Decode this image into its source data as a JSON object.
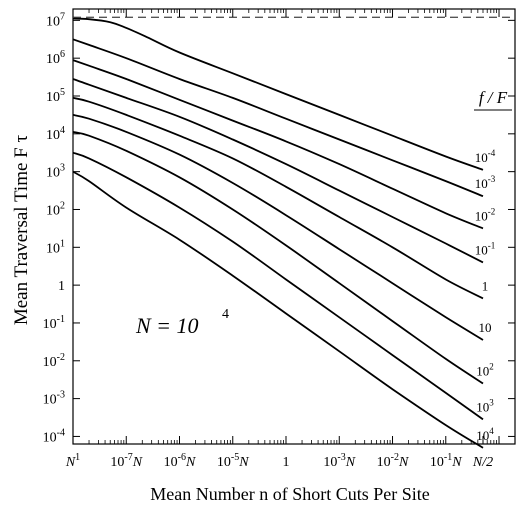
{
  "chart_data": {
    "type": "line",
    "xlabel": "Mean Number n of Short Cuts Per Site",
    "ylabel": "Mean Traversal Time   F τ",
    "annotation": {
      "base": "N = 10",
      "exponent": "4"
    },
    "legend_title": "f / F",
    "x_scale": "log10 (in units of N, N = 10^4)",
    "y_scale": "log10",
    "xlim_log10": [
      -8,
      0.3
    ],
    "ylim_log10": [
      -4.2,
      7.3
    ],
    "x_ticks": [
      {
        "label": "N",
        "sup": "1",
        "x_log10": -8
      },
      {
        "label": "10",
        "sup": "-7",
        "suffix": "N",
        "x_log10": -7
      },
      {
        "label": "10",
        "sup": "-6",
        "suffix": "N",
        "x_log10": -6
      },
      {
        "label": "10",
        "sup": "-5",
        "suffix": "N",
        "x_log10": -5
      },
      {
        "label": "1",
        "sup": "",
        "suffix": "",
        "x_log10": -4
      },
      {
        "label": "10",
        "sup": "-3",
        "suffix": "N",
        "x_log10": -3
      },
      {
        "label": "10",
        "sup": "-2",
        "suffix": "N",
        "x_log10": -2
      },
      {
        "label": "10",
        "sup": "-1",
        "suffix": "N",
        "x_log10": -1
      },
      {
        "label": "N/2",
        "sup": "",
        "suffix": "",
        "x_log10": -0.301
      }
    ],
    "y_ticks": [
      {
        "label": "10",
        "sup": "7",
        "y_log10": 7
      },
      {
        "label": "10",
        "sup": "6",
        "y_log10": 6
      },
      {
        "label": "10",
        "sup": "5",
        "y_log10": 5
      },
      {
        "label": "10",
        "sup": "4",
        "y_log10": 4
      },
      {
        "label": "10",
        "sup": "3",
        "y_log10": 3
      },
      {
        "label": "10",
        "sup": "2",
        "y_log10": 2
      },
      {
        "label": "10",
        "sup": "1",
        "y_log10": 1
      },
      {
        "label": "1",
        "sup": "",
        "y_log10": 0
      },
      {
        "label": "10",
        "sup": "-1",
        "y_log10": -1
      },
      {
        "label": "10",
        "sup": "-2",
        "y_log10": -2
      },
      {
        "label": "10",
        "sup": "-3",
        "y_log10": -3
      },
      {
        "label": "10",
        "sup": "-4",
        "y_log10": -4
      }
    ],
    "reference_line": {
      "style": "dashed",
      "y_log10": 7.08
    },
    "series": [
      {
        "name": "10^-4",
        "label": "10",
        "sup": "-4",
        "points_log10": [
          [
            -8,
            7.05
          ],
          [
            -7.7,
            7.03
          ],
          [
            -7.3,
            6.95
          ],
          [
            -7,
            6.8
          ],
          [
            -6.6,
            6.55
          ],
          [
            -6,
            6.15
          ],
          [
            -5,
            5.6
          ],
          [
            -4,
            5.05
          ],
          [
            -3,
            4.5
          ],
          [
            -2,
            3.95
          ],
          [
            -1,
            3.4
          ],
          [
            -0.301,
            3.05
          ]
        ]
      },
      {
        "name": "10^-3",
        "label": "10",
        "sup": "-3",
        "points_log10": [
          [
            -8,
            6.5
          ],
          [
            -7.7,
            6.35
          ],
          [
            -7,
            6.0
          ],
          [
            -6,
            5.45
          ],
          [
            -5,
            4.95
          ],
          [
            -4,
            4.4
          ],
          [
            -3,
            3.85
          ],
          [
            -2,
            3.3
          ],
          [
            -1,
            2.75
          ],
          [
            -0.301,
            2.35
          ]
        ]
      },
      {
        "name": "10^-2",
        "label": "10",
        "sup": "-2",
        "points_log10": [
          [
            -8,
            5.95
          ],
          [
            -7.7,
            5.8
          ],
          [
            -7,
            5.45
          ],
          [
            -6,
            4.9
          ],
          [
            -5,
            4.35
          ],
          [
            -4,
            3.8
          ],
          [
            -3,
            3.2
          ],
          [
            -2,
            2.55
          ],
          [
            -1,
            1.9
          ],
          [
            -0.301,
            1.5
          ]
        ]
      },
      {
        "name": "10^-1",
        "label": "10",
        "sup": "-1",
        "points_log10": [
          [
            -8,
            5.45
          ],
          [
            -7.7,
            5.3
          ],
          [
            -7,
            4.95
          ],
          [
            -6,
            4.45
          ],
          [
            -5,
            3.85
          ],
          [
            -4,
            3.2
          ],
          [
            -3,
            2.5
          ],
          [
            -2,
            1.8
          ],
          [
            -1,
            1.1
          ],
          [
            -0.301,
            0.6
          ]
        ]
      },
      {
        "name": "1",
        "label": "1",
        "sup": "",
        "points_log10": [
          [
            -8,
            4.95
          ],
          [
            -7.7,
            4.85
          ],
          [
            -7,
            4.5
          ],
          [
            -6,
            3.95
          ],
          [
            -5,
            3.35
          ],
          [
            -4,
            2.6
          ],
          [
            -3,
            1.8
          ],
          [
            -2,
            1.0
          ],
          [
            -1,
            0.15
          ],
          [
            -0.301,
            -0.35
          ]
        ]
      },
      {
        "name": "10",
        "label": "10",
        "sup": "",
        "points_log10": [
          [
            -8,
            4.5
          ],
          [
            -7.7,
            4.4
          ],
          [
            -7,
            4.05
          ],
          [
            -6,
            3.45
          ],
          [
            -5,
            2.7
          ],
          [
            -4,
            1.85
          ],
          [
            -3,
            0.95
          ],
          [
            -2,
            0.05
          ],
          [
            -1,
            -0.85
          ],
          [
            -0.301,
            -1.45
          ]
        ]
      },
      {
        "name": "10^2",
        "label": "10",
        "sup": "2",
        "points_log10": [
          [
            -8,
            4.05
          ],
          [
            -7.7,
            3.95
          ],
          [
            -7,
            3.55
          ],
          [
            -6,
            2.85
          ],
          [
            -5,
            2.0
          ],
          [
            -4,
            1.05
          ],
          [
            -3,
            0.05
          ],
          [
            -2,
            -0.95
          ],
          [
            -1,
            -1.95
          ],
          [
            -0.301,
            -2.6
          ]
        ]
      },
      {
        "name": "10^3",
        "label": "10",
        "sup": "3",
        "points_log10": [
          [
            -8,
            3.5
          ],
          [
            -7.7,
            3.35
          ],
          [
            -7,
            2.85
          ],
          [
            -6,
            2.05
          ],
          [
            -5,
            1.15
          ],
          [
            -4,
            0.15
          ],
          [
            -3,
            -0.85
          ],
          [
            -2,
            -1.85
          ],
          [
            -1,
            -2.85
          ],
          [
            -0.301,
            -3.55
          ]
        ]
      },
      {
        "name": "10^4",
        "label": "10",
        "sup": "4",
        "points_log10": [
          [
            -8,
            3.0
          ],
          [
            -7.7,
            2.75
          ],
          [
            -7,
            2.05
          ],
          [
            -6,
            1.2
          ],
          [
            -5,
            0.25
          ],
          [
            -4,
            -0.75
          ],
          [
            -3,
            -1.75
          ],
          [
            -2,
            -2.75
          ],
          [
            -1,
            -3.7
          ],
          [
            -0.301,
            -4.3
          ]
        ]
      }
    ]
  }
}
